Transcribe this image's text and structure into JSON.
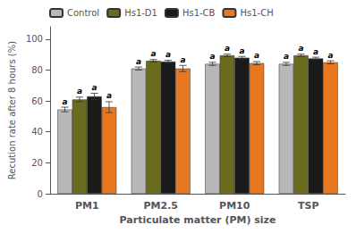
{
  "chart_data": {
    "type": "bar",
    "categories": [
      "PM1",
      "PM2.5",
      "PM10",
      "TSP"
    ],
    "series": [
      {
        "name": "Control",
        "color": "#b8b8b8",
        "values": [
          54.5,
          81.0,
          84.0,
          84.0
        ],
        "errors": [
          1.5,
          1.0,
          1.0,
          1.0
        ],
        "annotations": [
          "a",
          "a",
          "a",
          "a"
        ]
      },
      {
        "name": "Hs1-D1",
        "color": "#6b6b20",
        "values": [
          61.0,
          86.0,
          89.5,
          89.5
        ],
        "errors": [
          1.5,
          0.8,
          0.8,
          0.8
        ],
        "annotations": [
          "a",
          "a",
          "a",
          "a"
        ]
      },
      {
        "name": "Hs1-CB",
        "color": "#1a1a1a",
        "values": [
          63.0,
          85.5,
          88.0,
          87.5
        ],
        "errors": [
          2.0,
          0.8,
          0.8,
          0.8
        ],
        "annotations": [
          "a",
          "a",
          "a",
          "a"
        ]
      },
      {
        "name": "Hs1-CH",
        "color": "#e87820",
        "values": [
          56.0,
          81.0,
          84.5,
          85.0
        ],
        "errors": [
          3.5,
          2.0,
          1.0,
          1.0
        ],
        "annotations": [
          "a",
          "a",
          "a",
          "a"
        ]
      }
    ],
    "ylabel": "Recution rate after 8 hours (%)",
    "xlabel": "Particulate matter (PM) size",
    "ylim": [
      0,
      108
    ],
    "yticks": [
      0,
      20,
      40,
      60,
      80,
      100
    ],
    "grid": false,
    "legend": "upper left"
  }
}
